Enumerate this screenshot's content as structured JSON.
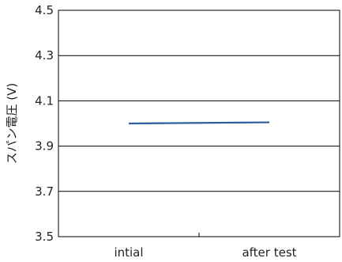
{
  "chart_data": {
    "type": "line",
    "title": "",
    "xlabel": "",
    "ylabel": "スパン電圧 (V)",
    "categories": [
      "intial",
      "after test"
    ],
    "series": [
      {
        "values": [
          4.0,
          4.005
        ],
        "color": "#2a5e9e"
      }
    ],
    "ylim": [
      3.5,
      4.5
    ],
    "yticks": [
      3.5,
      3.7,
      3.9,
      4.1,
      4.3,
      4.5
    ],
    "ytick_labels": [
      "3.5",
      "3.7",
      "3.9",
      "4.1",
      "4.3",
      "4.5"
    ],
    "grid": true,
    "legend": "none"
  }
}
